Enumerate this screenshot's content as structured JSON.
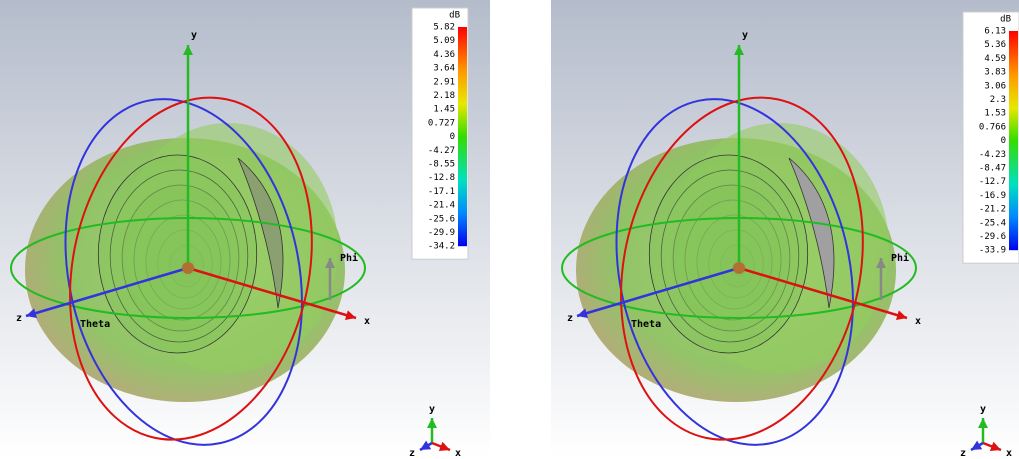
{
  "panels": [
    {
      "axes": {
        "x": "x",
        "y": "y",
        "z": "z",
        "phi": "Phi",
        "theta": "Theta"
      },
      "colorbar": {
        "unit": "dB",
        "ticks": [
          "5.82",
          "5.09",
          "4.36",
          "3.64",
          "2.91",
          "2.18",
          "1.45",
          "0.727",
          "0",
          "-4.27",
          "-8.55",
          "-12.8",
          "-17.1",
          "-21.4",
          "-25.6",
          "-29.9",
          "-34.2"
        ]
      },
      "triad": {
        "x": "x",
        "y": "y",
        "z": "z"
      }
    },
    {
      "axes": {
        "x": "x",
        "y": "y",
        "z": "z",
        "phi": "Phi",
        "theta": "Theta"
      },
      "colorbar": {
        "unit": "dB",
        "ticks": [
          "6.13",
          "5.36",
          "4.59",
          "3.83",
          "3.06",
          "2.3",
          "1.53",
          "0.766",
          "0",
          "-4.23",
          "-8.47",
          "-12.7",
          "-16.9",
          "-21.2",
          "-25.4",
          "-29.6",
          "-33.9"
        ]
      },
      "triad": {
        "x": "x",
        "y": "y",
        "z": "z"
      }
    }
  ]
}
